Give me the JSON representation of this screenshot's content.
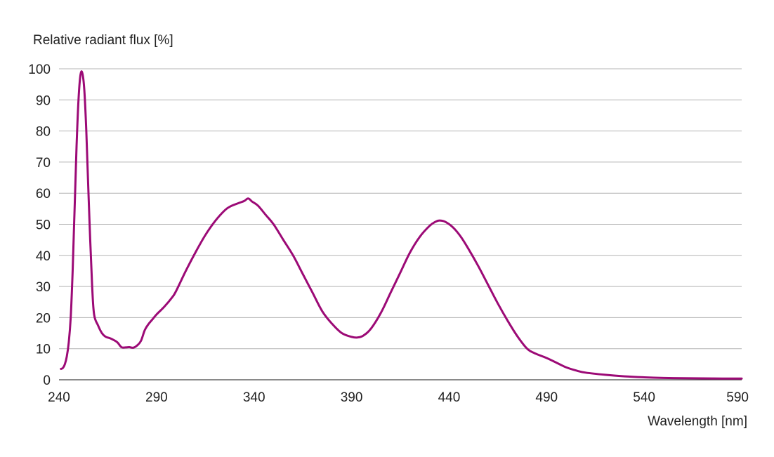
{
  "chart_data": {
    "type": "line",
    "ylabel": "Relative radiant flux [%]",
    "xlabel": "Wavelength [nm]",
    "xlim": [
      240,
      590
    ],
    "ylim": [
      0,
      100
    ],
    "x_ticks": [
      "240",
      "290",
      "340",
      "390",
      "440",
      "490",
      "540",
      "590"
    ],
    "y_ticks": [
      "0",
      "10",
      "20",
      "30",
      "40",
      "50",
      "60",
      "70",
      "80",
      "90",
      "100"
    ],
    "grid": "horizontal",
    "series": [
      {
        "color": "#9c0a76",
        "points": [
          [
            241,
            3.5
          ],
          [
            242,
            3.8
          ],
          [
            243,
            5
          ],
          [
            244,
            7.5
          ],
          [
            245,
            12
          ],
          [
            246,
            20
          ],
          [
            247,
            35
          ],
          [
            248,
            55
          ],
          [
            249,
            75
          ],
          [
            250,
            90
          ],
          [
            251,
            98
          ],
          [
            252,
            98.5
          ],
          [
            253,
            93
          ],
          [
            254,
            80
          ],
          [
            255,
            62
          ],
          [
            256,
            45
          ],
          [
            257,
            30
          ],
          [
            258,
            21
          ],
          [
            260,
            17.5
          ],
          [
            262,
            15
          ],
          [
            264,
            13.8
          ],
          [
            266,
            13.4
          ],
          [
            268,
            12.8
          ],
          [
            270,
            12
          ],
          [
            272,
            10.5
          ],
          [
            274,
            10.4
          ],
          [
            276,
            10.5
          ],
          [
            278,
            10.3
          ],
          [
            280,
            11
          ],
          [
            282,
            12.5
          ],
          [
            284,
            16
          ],
          [
            286,
            18
          ],
          [
            288,
            19.5
          ],
          [
            290,
            21
          ],
          [
            294,
            23.5
          ],
          [
            298,
            26.5
          ],
          [
            300,
            28.5
          ],
          [
            305,
            35
          ],
          [
            310,
            41
          ],
          [
            315,
            46.5
          ],
          [
            320,
            51
          ],
          [
            325,
            54.5
          ],
          [
            328,
            55.8
          ],
          [
            332,
            56.8
          ],
          [
            335,
            57.5
          ],
          [
            337,
            58.3
          ],
          [
            339,
            57.3
          ],
          [
            342,
            56
          ],
          [
            346,
            53
          ],
          [
            350,
            50
          ],
          [
            355,
            45
          ],
          [
            360,
            40
          ],
          [
            365,
            34
          ],
          [
            370,
            28
          ],
          [
            375,
            22
          ],
          [
            380,
            18
          ],
          [
            385,
            15
          ],
          [
            390,
            13.8
          ],
          [
            393,
            13.6
          ],
          [
            396,
            14.2
          ],
          [
            400,
            16.5
          ],
          [
            405,
            21.5
          ],
          [
            410,
            28
          ],
          [
            415,
            34.5
          ],
          [
            420,
            41
          ],
          [
            425,
            46
          ],
          [
            430,
            49.5
          ],
          [
            433,
            50.8
          ],
          [
            435,
            51.2
          ],
          [
            438,
            50.8
          ],
          [
            442,
            49
          ],
          [
            446,
            46
          ],
          [
            450,
            42
          ],
          [
            455,
            36.5
          ],
          [
            460,
            30.5
          ],
          [
            465,
            24.5
          ],
          [
            470,
            19
          ],
          [
            475,
            14
          ],
          [
            480,
            10
          ],
          [
            484,
            8.5
          ],
          [
            490,
            7
          ],
          [
            496,
            5.2
          ],
          [
            500,
            4
          ],
          [
            505,
            3
          ],
          [
            510,
            2.3
          ],
          [
            520,
            1.6
          ],
          [
            530,
            1.1
          ],
          [
            540,
            0.8
          ],
          [
            550,
            0.6
          ],
          [
            560,
            0.5
          ],
          [
            570,
            0.45
          ],
          [
            580,
            0.4
          ],
          [
            590,
            0.4
          ]
        ]
      }
    ]
  }
}
